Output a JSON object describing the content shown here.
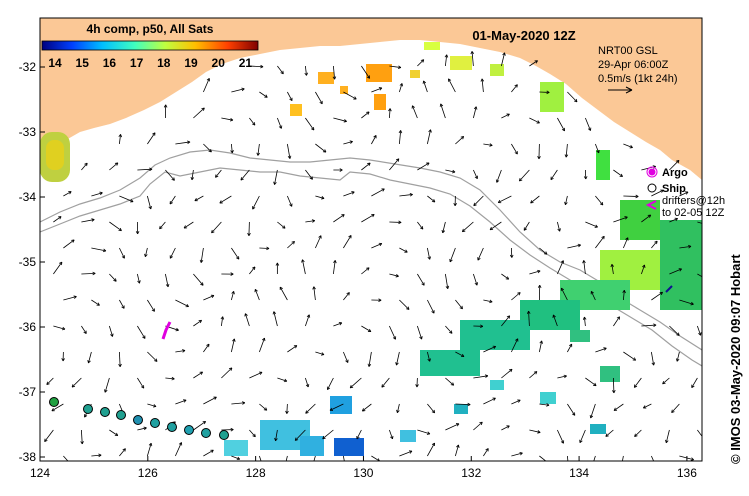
{
  "title": "01-May-2020 12Z",
  "colorbar": {
    "title": "4h comp, p50, All Sats",
    "ticks": [
      "14",
      "15",
      "16",
      "17",
      "18",
      "19",
      "20",
      "21"
    ],
    "colors": [
      "#00007f",
      "#0040ff",
      "#00bfff",
      "#40ffbf",
      "#bfff40",
      "#ffbf00",
      "#ff4000",
      "#7f0000"
    ]
  },
  "currents_info": {
    "line1": "NRT00 GSL",
    "line2": "29-Apr 06:00Z",
    "line3": "0.5m/s (1kt 24h)"
  },
  "legend": {
    "argo": "Argo",
    "ship": "Ship",
    "drifters_line1": "drifters@12h",
    "drifters_line2": "to 02-05 12Z"
  },
  "side_label": "© IMOS 03-May-2020 09:07 Hobart",
  "axes": {
    "x_ticks": [
      "124",
      "126",
      "128",
      "130",
      "132",
      "134",
      "136"
    ],
    "y_ticks": [
      "-32",
      "-33",
      "-34",
      "-35",
      "-36",
      "-37",
      "-38"
    ]
  },
  "colors": {
    "land": "#fbc896",
    "ocean": "#ffffff",
    "argo": "#e000e0",
    "ship_dots": "#00a0a0",
    "isobath": "#a0a0a0"
  }
}
